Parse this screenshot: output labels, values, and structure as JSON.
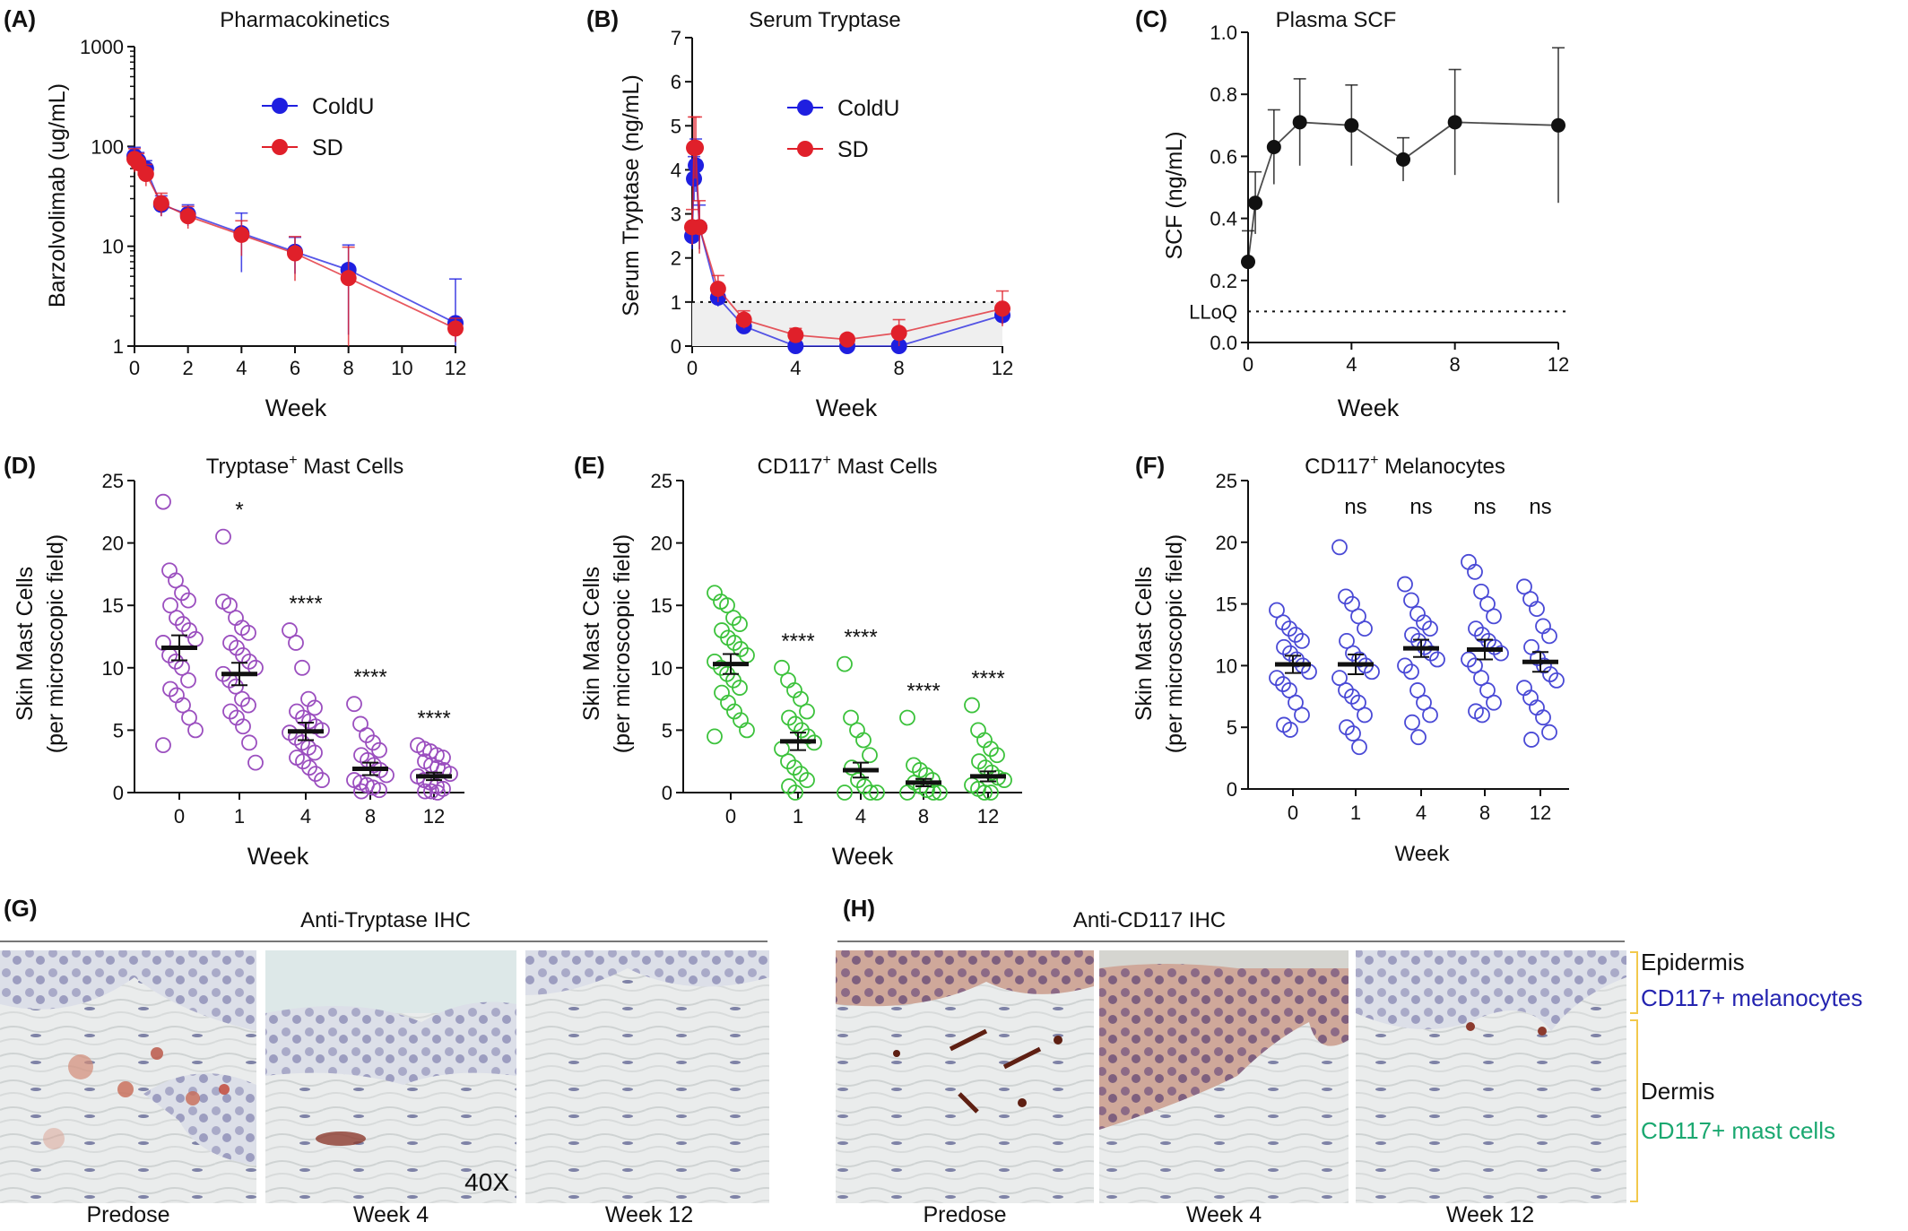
{
  "colors": {
    "coldu": "#1f1fe0",
    "sd": "#e0202a",
    "black": "#111111",
    "purple": "#9b4fbf",
    "green": "#3cc23c",
    "blue": "#4a4ad6",
    "dermis_label": "#1aa870",
    "epidermis_sub": "#2424b0",
    "bracket": "#f2c94c"
  },
  "chart_data": [
    {
      "panel": "(A)",
      "type": "line",
      "title": "Pharmacokinetics",
      "xlabel": "Week",
      "ylabel": "Barzolvolimab (ug/mL)",
      "yscale": "log",
      "ylim": [
        1,
        1000
      ],
      "xlim": [
        0,
        12
      ],
      "xticks": [
        "0",
        "2",
        "4",
        "6",
        "8",
        "10",
        "12"
      ],
      "yticks": [
        "1",
        "10",
        "100",
        "1000"
      ],
      "legend_position": "top-right",
      "series": [
        {
          "name": "ColdU",
          "x": [
            0,
            0.14,
            0.43,
            1,
            2,
            4,
            6,
            8,
            12
          ],
          "y": [
            80,
            72,
            60,
            26,
            21,
            13.5,
            8.8,
            5.8,
            1.7
          ],
          "err": [
            18,
            15,
            12,
            6,
            5,
            8,
            3.5,
            4.5,
            3
          ]
        },
        {
          "name": "SD",
          "x": [
            0,
            0.14,
            0.43,
            1,
            2,
            4,
            6,
            8,
            12
          ],
          "y": [
            75,
            68,
            53,
            27,
            20,
            13,
            8.5,
            4.8,
            1.5
          ],
          "err": [
            20,
            17,
            13,
            7,
            5,
            5,
            4,
            5,
            0.4
          ]
        }
      ]
    },
    {
      "panel": "(B)",
      "type": "line",
      "title": "Serum Tryptase",
      "xlabel": "Week",
      "ylabel": "Serum Tryptase (ng/mL)",
      "ylim": [
        0,
        7
      ],
      "xlim": [
        0,
        12
      ],
      "xticks": [
        "0",
        "4",
        "8",
        "12"
      ],
      "yticks": [
        "0",
        "1",
        "2",
        "3",
        "4",
        "5",
        "6",
        "7"
      ],
      "reference_line": 1,
      "legend_position": "top-right",
      "series": [
        {
          "name": "ColdU",
          "x": [
            0,
            0.07,
            0.14,
            0.28,
            1,
            2,
            4,
            6,
            8,
            12
          ],
          "y": [
            2.5,
            3.8,
            4.1,
            2.7,
            1.1,
            0.45,
            0,
            0,
            0,
            0.7
          ],
          "err": [
            0.3,
            0.5,
            0.6,
            0.5,
            0.2,
            0.1,
            0.05,
            0.05,
            0.05,
            0.2
          ]
        },
        {
          "name": "SD",
          "x": [
            0,
            0.07,
            0.14,
            0.28,
            1,
            2,
            4,
            6,
            8,
            12
          ],
          "y": [
            2.7,
            4.5,
            4.5,
            2.7,
            1.3,
            0.6,
            0.25,
            0.15,
            0.3,
            0.85
          ],
          "err": [
            0.4,
            0.7,
            0.7,
            0.6,
            0.3,
            0.2,
            0.15,
            0.1,
            0.3,
            0.4
          ]
        }
      ]
    },
    {
      "panel": "(C)",
      "type": "line",
      "title": "Plasma SCF",
      "xlabel": "Week",
      "ylabel": "SCF (ng/mL)",
      "ylim": [
        0,
        1.0
      ],
      "xlim": [
        0,
        12
      ],
      "xticks": [
        "0",
        "4",
        "8",
        "12"
      ],
      "yticks": [
        "0.0",
        "0.2",
        "0.4",
        "0.6",
        "0.8",
        "1.0"
      ],
      "lloq": 0.1,
      "lloq_label": "LLoQ",
      "series": [
        {
          "x": [
            0,
            0.28,
            1,
            2,
            4,
            6,
            8,
            12
          ],
          "y": [
            0.26,
            0.45,
            0.63,
            0.71,
            0.7,
            0.59,
            0.71,
            0.7
          ],
          "err": [
            0.1,
            0.1,
            0.12,
            0.14,
            0.13,
            0.07,
            0.17,
            0.25
          ]
        }
      ]
    },
    {
      "panel": "(D)",
      "type": "scatter",
      "title": "Tryptase",
      "title_sup": "+",
      "title_rest": " Mast Cells",
      "xlabel": "Week",
      "ylabel": [
        "Skin Mast Cells",
        "(per microscopic field)"
      ],
      "ylim": [
        0,
        25
      ],
      "yticks": [
        "0",
        "5",
        "10",
        "15",
        "20",
        "25"
      ],
      "categories": [
        "0",
        "1",
        "4",
        "8",
        "12"
      ],
      "significance": [
        "",
        "*",
        "****",
        "****",
        "****"
      ],
      "means": [
        11.6,
        9.5,
        4.9,
        1.9,
        1.3
      ],
      "sems": [
        1.0,
        0.9,
        0.7,
        0.5,
        0.3
      ],
      "points": [
        [
          23.3,
          17.8,
          17,
          16,
          15.4,
          15,
          14,
          13.5,
          13,
          12.3,
          12,
          11,
          10.5,
          10,
          9,
          8.3,
          7.8,
          7,
          6,
          5,
          3.8
        ],
        [
          15.3,
          15,
          14,
          13.2,
          12.8,
          12,
          11.6,
          11,
          10.5,
          10,
          9.5,
          9,
          8.5,
          7.5,
          7,
          6.5,
          6,
          5.3,
          4,
          2.4,
          20.5
        ],
        [
          13,
          12,
          10,
          7.5,
          6.8,
          6.5,
          6,
          5.7,
          5.3,
          5,
          4.8,
          4.4,
          4,
          3.6,
          3.2,
          2.8,
          2.5,
          2,
          1.5,
          1
        ],
        [
          7.1,
          5.5,
          4.6,
          4,
          3.4,
          3,
          2.6,
          2.2,
          1.8,
          1.4,
          1,
          0.8,
          0.6,
          0.4,
          0.2,
          0.1
        ],
        [
          3.8,
          3.5,
          3.3,
          3,
          2.8,
          2.5,
          2.2,
          2,
          1.8,
          1.5,
          1.3,
          1,
          0.8,
          0.5,
          0.3,
          0.1,
          0.1,
          0
        ]
      ]
    },
    {
      "panel": "(E)",
      "type": "scatter",
      "title": "CD117",
      "title_sup": "+",
      "title_rest": " Mast Cells",
      "xlabel": "Week",
      "ylabel": [
        "Skin Mast Cells",
        "(per microscopic field)"
      ],
      "ylim": [
        0,
        25
      ],
      "yticks": [
        "0",
        "5",
        "10",
        "15",
        "20",
        "25"
      ],
      "categories": [
        "0",
        "1",
        "4",
        "8",
        "12"
      ],
      "significance": [
        "",
        "****",
        "****",
        "****",
        "****"
      ],
      "means": [
        10.3,
        4.1,
        1.8,
        0.8,
        1.3
      ],
      "sems": [
        0.8,
        0.7,
        0.6,
        0.3,
        0.4
      ],
      "points": [
        [
          16,
          15.3,
          15,
          14,
          13.5,
          13,
          12.4,
          12,
          11.5,
          11,
          10.5,
          10,
          9.5,
          9,
          8.4,
          8,
          7.2,
          6.5,
          5.8,
          5,
          4.5
        ],
        [
          10,
          9,
          8.2,
          7.5,
          6.5,
          6,
          5.5,
          5,
          4.5,
          4,
          3.5,
          2.5,
          2,
          1.5,
          1,
          0.5,
          0
        ],
        [
          10.3,
          6,
          5,
          4.2,
          3,
          2,
          1,
          0.5,
          0,
          0,
          0
        ],
        [
          6,
          2.2,
          1.8,
          1.4,
          1,
          0.8,
          0.5,
          0.2,
          0,
          0,
          0
        ],
        [
          7,
          5,
          4.2,
          3.5,
          3,
          2.5,
          2,
          1.6,
          1.2,
          1,
          0.6,
          0.3,
          0,
          0
        ]
      ]
    },
    {
      "panel": "(F)",
      "type": "scatter",
      "title": "CD117",
      "title_sup": "+",
      "title_rest": " Melanocytes",
      "xlabel": "Week",
      "ylabel": [
        "Skin Mast Cells",
        "(per microscopic field)"
      ],
      "ylim": [
        0,
        25
      ],
      "yticks": [
        "0",
        "5",
        "10",
        "15",
        "20",
        "25"
      ],
      "categories": [
        "0",
        "1",
        "4",
        "8",
        "12"
      ],
      "significance": [
        "",
        "ns",
        "ns",
        "ns",
        "ns"
      ],
      "means": [
        10.1,
        10.1,
        11.4,
        11.3,
        10.3
      ],
      "sems": [
        0.7,
        0.8,
        0.7,
        0.8,
        0.8
      ],
      "points": [
        [
          14.5,
          13.5,
          13,
          12.5,
          12,
          11.5,
          11,
          10.5,
          10,
          9.5,
          9,
          8.5,
          8,
          7,
          6,
          5.2,
          4.8
        ],
        [
          19.6,
          15.6,
          15,
          14,
          13,
          12,
          11,
          10.5,
          10,
          9.5,
          9,
          8,
          7.5,
          7,
          6,
          5,
          4.5,
          3.4
        ],
        [
          16.6,
          15.3,
          14.2,
          13.5,
          13,
          12.5,
          12,
          11.5,
          11,
          10.5,
          10,
          9.5,
          8,
          7,
          6,
          5.4,
          4.2
        ],
        [
          18.4,
          17.6,
          16,
          15,
          14,
          13,
          12.5,
          12,
          11.5,
          11,
          10.5,
          10,
          9,
          8,
          7,
          6.3,
          6
        ],
        [
          16.4,
          15.4,
          14.6,
          13.2,
          12.4,
          11.5,
          10.6,
          10,
          9.3,
          8.8,
          8.2,
          7.4,
          6.6,
          5.8,
          4.6,
          4
        ]
      ]
    }
  ],
  "micrographs": {
    "G": {
      "panel": "(G)",
      "title": "Anti-Tryptase IHC",
      "captions": [
        "Predose",
        "Week 4",
        "Week 12"
      ],
      "magnification": "40X"
    },
    "H": {
      "panel": "(H)",
      "title": "Anti-CD117 IHC",
      "captions": [
        "Predose",
        "Week 4",
        "Week 12"
      ]
    },
    "legend": {
      "epidermis": "Epidermis",
      "epidermis_sub": "CD117+ melanocytes",
      "dermis": "Dermis",
      "dermis_sub": "CD117+ mast cells"
    }
  }
}
